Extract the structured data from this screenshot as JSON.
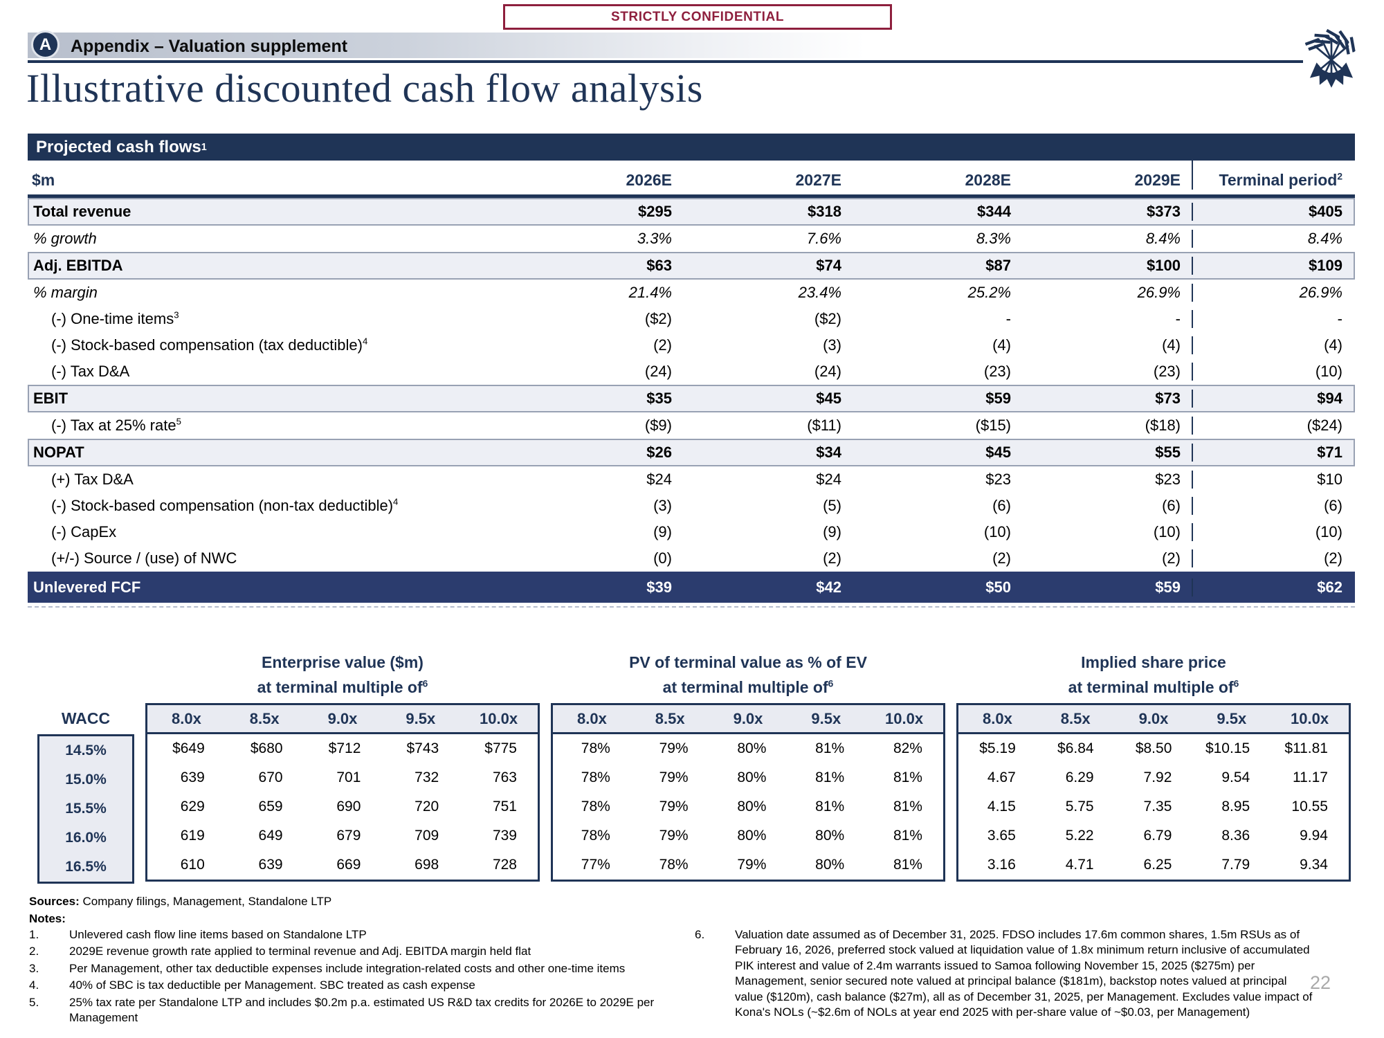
{
  "colors": {
    "navy": "#1f3456",
    "navy_row": "#2b3c6e",
    "maroon": "#8e1f3d"
  },
  "banner": {
    "label": "STRICTLY CONFIDENTIAL"
  },
  "header": {
    "badge": "A",
    "section": "Appendix – Valuation supplement"
  },
  "title": "Illustrative discounted cash flow analysis",
  "main_table": {
    "header_label": "Projected cash flows",
    "header_sup": "1",
    "unit_label": "$m",
    "columns": [
      "2026E",
      "2027E",
      "2028E",
      "2029E"
    ],
    "terminal_label": "Terminal period",
    "terminal_sup": "2",
    "rows": [
      {
        "label": "Total revenue",
        "sup": "",
        "style": "sub",
        "values": [
          "$295",
          "$318",
          "$344",
          "$373",
          "$405"
        ]
      },
      {
        "label": "% growth",
        "sup": "",
        "style": "pct",
        "values": [
          "3.3%",
          "7.6%",
          "8.3%",
          "8.4%",
          "8.4%"
        ]
      },
      {
        "label": "Adj. EBITDA",
        "sup": "",
        "style": "sub",
        "values": [
          "$63",
          "$74",
          "$87",
          "$100",
          "$109"
        ]
      },
      {
        "label": "% margin",
        "sup": "",
        "style": "pct",
        "values": [
          "21.4%",
          "23.4%",
          "25.2%",
          "26.9%",
          "26.9%"
        ]
      },
      {
        "label": "(-) One-time items",
        "sup": "3",
        "style": "item",
        "values": [
          "($2)",
          "($2)",
          "-",
          "-",
          "-"
        ]
      },
      {
        "label": "(-) Stock-based compensation (tax deductible)",
        "sup": "4",
        "style": "item",
        "values": [
          "(2)",
          "(3)",
          "(4)",
          "(4)",
          "(4)"
        ]
      },
      {
        "label": "(-) Tax D&A",
        "sup": "",
        "style": "item",
        "values": [
          "(24)",
          "(24)",
          "(23)",
          "(23)",
          "(10)"
        ]
      },
      {
        "label": "EBIT",
        "sup": "",
        "style": "sub",
        "values": [
          "$35",
          "$45",
          "$59",
          "$73",
          "$94"
        ]
      },
      {
        "label": "(-) Tax at 25% rate",
        "sup": "5",
        "style": "item",
        "values": [
          "($9)",
          "($11)",
          "($15)",
          "($18)",
          "($24)"
        ]
      },
      {
        "label": "NOPAT",
        "sup": "",
        "style": "sub",
        "values": [
          "$26",
          "$34",
          "$45",
          "$55",
          "$71"
        ]
      },
      {
        "label": "(+) Tax D&A",
        "sup": "",
        "style": "item",
        "values": [
          "$24",
          "$24",
          "$23",
          "$23",
          "$10"
        ]
      },
      {
        "label": "(-) Stock-based compensation (non-tax deductible)",
        "sup": "4",
        "style": "item",
        "values": [
          "(3)",
          "(5)",
          "(6)",
          "(6)",
          "(6)"
        ]
      },
      {
        "label": "(-) CapEx",
        "sup": "",
        "style": "item",
        "values": [
          "(9)",
          "(9)",
          "(10)",
          "(10)",
          "(10)"
        ]
      },
      {
        "label": "(+/-) Source / (use) of NWC",
        "sup": "",
        "style": "item",
        "values": [
          "(0)",
          "(2)",
          "(2)",
          "(2)",
          "(2)"
        ]
      },
      {
        "label": "Unlevered FCF",
        "sup": "",
        "style": "total",
        "values": [
          "$39",
          "$42",
          "$50",
          "$59",
          "$62"
        ]
      }
    ]
  },
  "sensitivity": {
    "wacc_label": "WACC",
    "wacc_rows": [
      "14.5%",
      "15.0%",
      "15.5%",
      "16.0%",
      "16.5%"
    ],
    "multiples": [
      "8.0x",
      "8.5x",
      "9.0x",
      "9.5x",
      "10.0x"
    ],
    "tables": [
      {
        "title": "Enterprise value ($m)",
        "subtitle": "at terminal multiple of",
        "sup": "6",
        "rows": [
          [
            "$649",
            "$680",
            "$712",
            "$743",
            "$775"
          ],
          [
            "639",
            "670",
            "701",
            "732",
            "763"
          ],
          [
            "629",
            "659",
            "690",
            "720",
            "751"
          ],
          [
            "619",
            "649",
            "679",
            "709",
            "739"
          ],
          [
            "610",
            "639",
            "669",
            "698",
            "728"
          ]
        ]
      },
      {
        "title": "PV of terminal value as % of EV",
        "subtitle": "at terminal multiple of",
        "sup": "6",
        "rows": [
          [
            "78%",
            "79%",
            "80%",
            "81%",
            "82%"
          ],
          [
            "78%",
            "79%",
            "80%",
            "81%",
            "81%"
          ],
          [
            "78%",
            "79%",
            "80%",
            "81%",
            "81%"
          ],
          [
            "78%",
            "79%",
            "80%",
            "80%",
            "81%"
          ],
          [
            "77%",
            "78%",
            "79%",
            "80%",
            "81%"
          ]
        ]
      },
      {
        "title": "Implied share price",
        "subtitle": "at terminal multiple of",
        "sup": "6",
        "rows": [
          [
            "$5.19",
            "$6.84",
            "$8.50",
            "$10.15",
            "$11.81"
          ],
          [
            "4.67",
            "6.29",
            "7.92",
            "9.54",
            "11.17"
          ],
          [
            "4.15",
            "5.75",
            "7.35",
            "8.95",
            "10.55"
          ],
          [
            "3.65",
            "5.22",
            "6.79",
            "8.36",
            "9.94"
          ],
          [
            "3.16",
            "4.71",
            "6.25",
            "7.79",
            "9.34"
          ]
        ]
      }
    ]
  },
  "footer": {
    "sources_label": "Sources:",
    "sources": "Company filings, Management, Standalone LTP",
    "notes_label": "Notes:",
    "notes_left": [
      {
        "num": "1.",
        "text": "Unlevered cash flow line items based on Standalone LTP"
      },
      {
        "num": "2.",
        "text": "2029E revenue growth rate applied to terminal revenue and Adj. EBITDA margin held flat"
      },
      {
        "num": "3.",
        "text": "Per Management, other tax deductible expenses include integration-related costs and other one-time items"
      },
      {
        "num": "4.",
        "text": "40% of SBC is tax deductible per Management. SBC treated as cash expense"
      },
      {
        "num": "5.",
        "text": "25% tax rate per Standalone LTP and includes $0.2m p.a. estimated US R&D tax credits for 2026E to 2029E per Management"
      }
    ],
    "notes_right": [
      {
        "num": "6.",
        "text": "Valuation date assumed as of December 31, 2025. FDSO includes 17.6m common shares, 1.5m RSUs as of February 16, 2026, preferred stock valued at liquidation value of 1.8x minimum return inclusive of accumulated PIK interest and value of 2.4m warrants issued to Samoa following November 15, 2025 ($275m) per Management, senior secured note valued at principal balance ($181m), backstop notes valued at principal value ($120m), cash balance ($27m), all as of December 31, 2025, per Management. Excludes value impact of Kona's NOLs (~$2.6m of NOLs at year end 2025 with per-share value of ~$0.03, per Management)"
      }
    ],
    "page_number": "22"
  }
}
